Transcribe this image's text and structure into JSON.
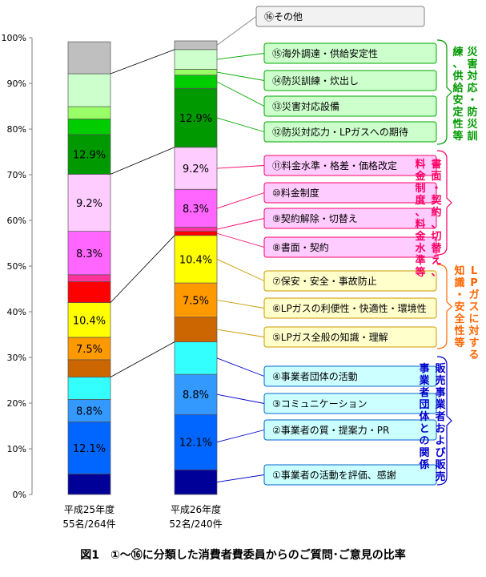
{
  "caption": "図1　①～⑯に分類した消費者費委員からのご質問･ご意見の比率",
  "chart_data": {
    "type": "stacked-bar",
    "y_ticks": [
      "0%",
      "10%",
      "20%",
      "30%",
      "40%",
      "50%",
      "60%",
      "70%",
      "80%",
      "90%",
      "100%"
    ],
    "ylim": [
      0,
      100
    ],
    "grid": false,
    "bars": [
      {
        "label_line1": "平成25年度",
        "label_line2": "55名/264件"
      },
      {
        "label_line1": "平成26年度",
        "label_line2": "52名/240件"
      }
    ],
    "series": [
      {
        "label": "①事業者の活動を評価、感謝",
        "color": "#000099",
        "values": [
          4.5,
          5.4
        ],
        "value_label": "",
        "group": "dealer"
      },
      {
        "label": "②事業者の質・提案力・PR",
        "color": "#0066ff",
        "values": [
          11.4,
          12.1
        ],
        "value_label": "12.1%",
        "group": "dealer"
      },
      {
        "label": "③コミュニケーション",
        "color": "#3399ff",
        "values": [
          4.9,
          8.8
        ],
        "value_label": "8.8%",
        "group": "dealer"
      },
      {
        "label": "④事業者団体の活動",
        "color": "#33ffff",
        "values": [
          4.9,
          7.1
        ],
        "value_label": "",
        "group": "dealer"
      },
      {
        "label": "⑤LPガス全般の知識・理解",
        "color": "#cc6600",
        "values": [
          3.8,
          5.4
        ],
        "value_label": "",
        "group": "knowledge"
      },
      {
        "label": "⑥LPガスの利便性・快適性・環境性",
        "color": "#ff9900",
        "values": [
          4.9,
          7.5
        ],
        "value_label": "7.5%",
        "group": "knowledge"
      },
      {
        "label": "⑦保安・安全・事故防止",
        "color": "#ffff00",
        "values": [
          7.6,
          10.4
        ],
        "value_label": "10.4%",
        "group": "knowledge"
      },
      {
        "label": "⑧書面・契約",
        "color": "#ff0000",
        "values": [
          4.6,
          0.9
        ],
        "value_label": "",
        "group": "contract"
      },
      {
        "label": "⑨契約解除・切替え",
        "color": "#ff3399",
        "values": [
          1.5,
          0.9
        ],
        "value_label": "",
        "group": "contract"
      },
      {
        "label": "⑩料金制度",
        "color": "#ff66ff",
        "values": [
          9.5,
          8.3
        ],
        "value_label": "8.3%",
        "group": "contract"
      },
      {
        "label": "⑪料金水準・格差・価格改定",
        "color": "#ffccff",
        "values": [
          12.5,
          9.2
        ],
        "value_label": "9.2%",
        "group": "contract"
      },
      {
        "label": "⑫防災対応力・LPガスへの期待",
        "color": "#009900",
        "values": [
          8.7,
          12.9
        ],
        "value_label": "12.9%",
        "group": "disaster"
      },
      {
        "label": "⑬災害対応設備",
        "color": "#00cc00",
        "values": [
          3.4,
          2.9
        ],
        "value_label": "",
        "group": "disaster"
      },
      {
        "label": "⑭防災訓練・炊出し",
        "color": "#99ff66",
        "values": [
          2.7,
          1.3
        ],
        "value_label": "",
        "group": "disaster"
      },
      {
        "label": "⑮海外調達・供給安定性",
        "color": "#ccffcc",
        "values": [
          7.2,
          4.3
        ],
        "value_label": "",
        "group": "disaster"
      },
      {
        "label": "⑯その他",
        "color": "#bfbfbf",
        "values": [
          7.0,
          1.9
        ],
        "value_label": "",
        "group": "other"
      }
    ],
    "groups": [
      {
        "id": "disaster",
        "label": "災害対応・防災訓練、供給安定性等",
        "color": "#009900",
        "box_fill": "#ccffcc",
        "box_stroke": "#00aa00"
      },
      {
        "id": "contract",
        "label": "書面・契約、切替え、料金制度、料金水準等",
        "color": "#ff0066",
        "box_fill": "#ffccff",
        "box_stroke": "#ff0066"
      },
      {
        "id": "knowledge",
        "label": "LPガスに対する知識・安全性等",
        "color": "#ff6600",
        "box_fill": "#ffffcc",
        "box_stroke": "#cc9900"
      },
      {
        "id": "dealer",
        "label": "販売事業者および販売事業者団体との関係",
        "color": "#0000cc",
        "box_fill": "#ccffff",
        "box_stroke": "#0066cc"
      },
      {
        "id": "other",
        "label": "",
        "color": "#000000",
        "box_fill": "#f2f2f2",
        "box_stroke": "#808080"
      }
    ]
  }
}
